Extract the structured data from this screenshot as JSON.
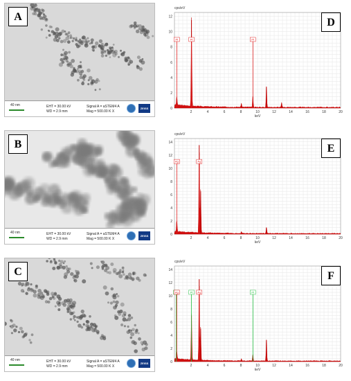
{
  "tem_panels": [
    {
      "letter": "A",
      "scale": "40 nm",
      "eht": "EHT = 30.00 kV",
      "wd": "WD =  2.9 mm",
      "signal": "Signal A = aSTEM4 A",
      "mag": "Mag =  500.00 K X",
      "logo": "ZEISS"
    },
    {
      "letter": "B",
      "scale": "40 nm",
      "eht": "EHT = 30.00 kV",
      "wd": "WD =  2.9 mm",
      "signal": "Signal A = aSTEM4 A",
      "mag": "Mag =  500.00 K X",
      "logo": "ZEISS"
    },
    {
      "letter": "C",
      "scale": "40 nm",
      "eht": "EHT = 30.00 kV",
      "wd": "WD =  2.9 mm",
      "signal": "Signal A = aSTEM4 A",
      "mag": "Mag =  500.00 K X",
      "logo": "ZEISS"
    }
  ],
  "eds_panels": [
    {
      "letter": "D",
      "ylabel": "cps/eV",
      "xlabel": "keV",
      "yticks": [
        "0",
        "2",
        "4",
        "6",
        "8",
        "10",
        "12"
      ],
      "ymax": 12.5,
      "peaks": [
        {
          "x": 2.05,
          "y": 11.5,
          "label": "Pt"
        },
        {
          "x": 9.44,
          "y": 1.5,
          "label": "Pt"
        },
        {
          "x": 0.28,
          "y": 1.2
        },
        {
          "x": 11.07,
          "y": 2.8
        },
        {
          "x": 8.05,
          "y": 0.5
        },
        {
          "x": 12.9,
          "y": 0.6
        }
      ],
      "markers": [
        {
          "x": 0.28,
          "label": "Pt",
          "color": "#e02020"
        },
        {
          "x": 2.05,
          "label": "Pt",
          "color": "#e02020"
        },
        {
          "x": 9.44,
          "label": "Pt",
          "color": "#e02020"
        }
      ],
      "marker_y": 8.7
    },
    {
      "letter": "E",
      "ylabel": "cps/eV",
      "xlabel": "keV",
      "yticks": [
        "0",
        "2",
        "4",
        "6",
        "8",
        "10",
        "12",
        "14"
      ],
      "ymax": 14.5,
      "peaks": [
        {
          "x": 2.98,
          "y": 13.5,
          "label": "Ag"
        },
        {
          "x": 3.15,
          "y": 6.5
        },
        {
          "x": 0.28,
          "y": 1.8
        },
        {
          "x": 11.07,
          "y": 1.0
        },
        {
          "x": 8.05,
          "y": 0.3
        }
      ],
      "markers": [
        {
          "x": 0.28,
          "label": "Ag",
          "color": "#e02020"
        },
        {
          "x": 2.98,
          "label": "Ag",
          "color": "#e02020"
        }
      ],
      "marker_y": 10.7
    },
    {
      "letter": "F",
      "ylabel": "cps/eV",
      "xlabel": "keV",
      "yticks": [
        "0",
        "2",
        "4",
        "6",
        "8",
        "10",
        "12",
        "14"
      ],
      "ymax": 14.5,
      "peaks": [
        {
          "x": 2.98,
          "y": 12.5,
          "label": "Ag"
        },
        {
          "x": 2.05,
          "y": 7.0
        },
        {
          "x": 3.15,
          "y": 5.0
        },
        {
          "x": 0.28,
          "y": 1.2
        },
        {
          "x": 9.44,
          "y": 1.0
        },
        {
          "x": 11.07,
          "y": 3.3
        },
        {
          "x": 8.05,
          "y": 0.3
        }
      ],
      "markers": [
        {
          "x": 0.2,
          "label": "Pt",
          "color": "#22c040"
        },
        {
          "x": 0.28,
          "label": "Ag",
          "color": "#e02020"
        },
        {
          "x": 2.05,
          "label": "Pt",
          "color": "#22c040"
        },
        {
          "x": 2.98,
          "label": "Ag",
          "color": "#e02020"
        },
        {
          "x": 9.44,
          "label": "Pt",
          "color": "#22c040"
        }
      ],
      "marker_y": 10.2
    },
    {
      "xticks": [
        "2",
        "4",
        "6",
        "8",
        "10",
        "12",
        "14",
        "16",
        "18",
        "20"
      ]
    }
  ]
}
